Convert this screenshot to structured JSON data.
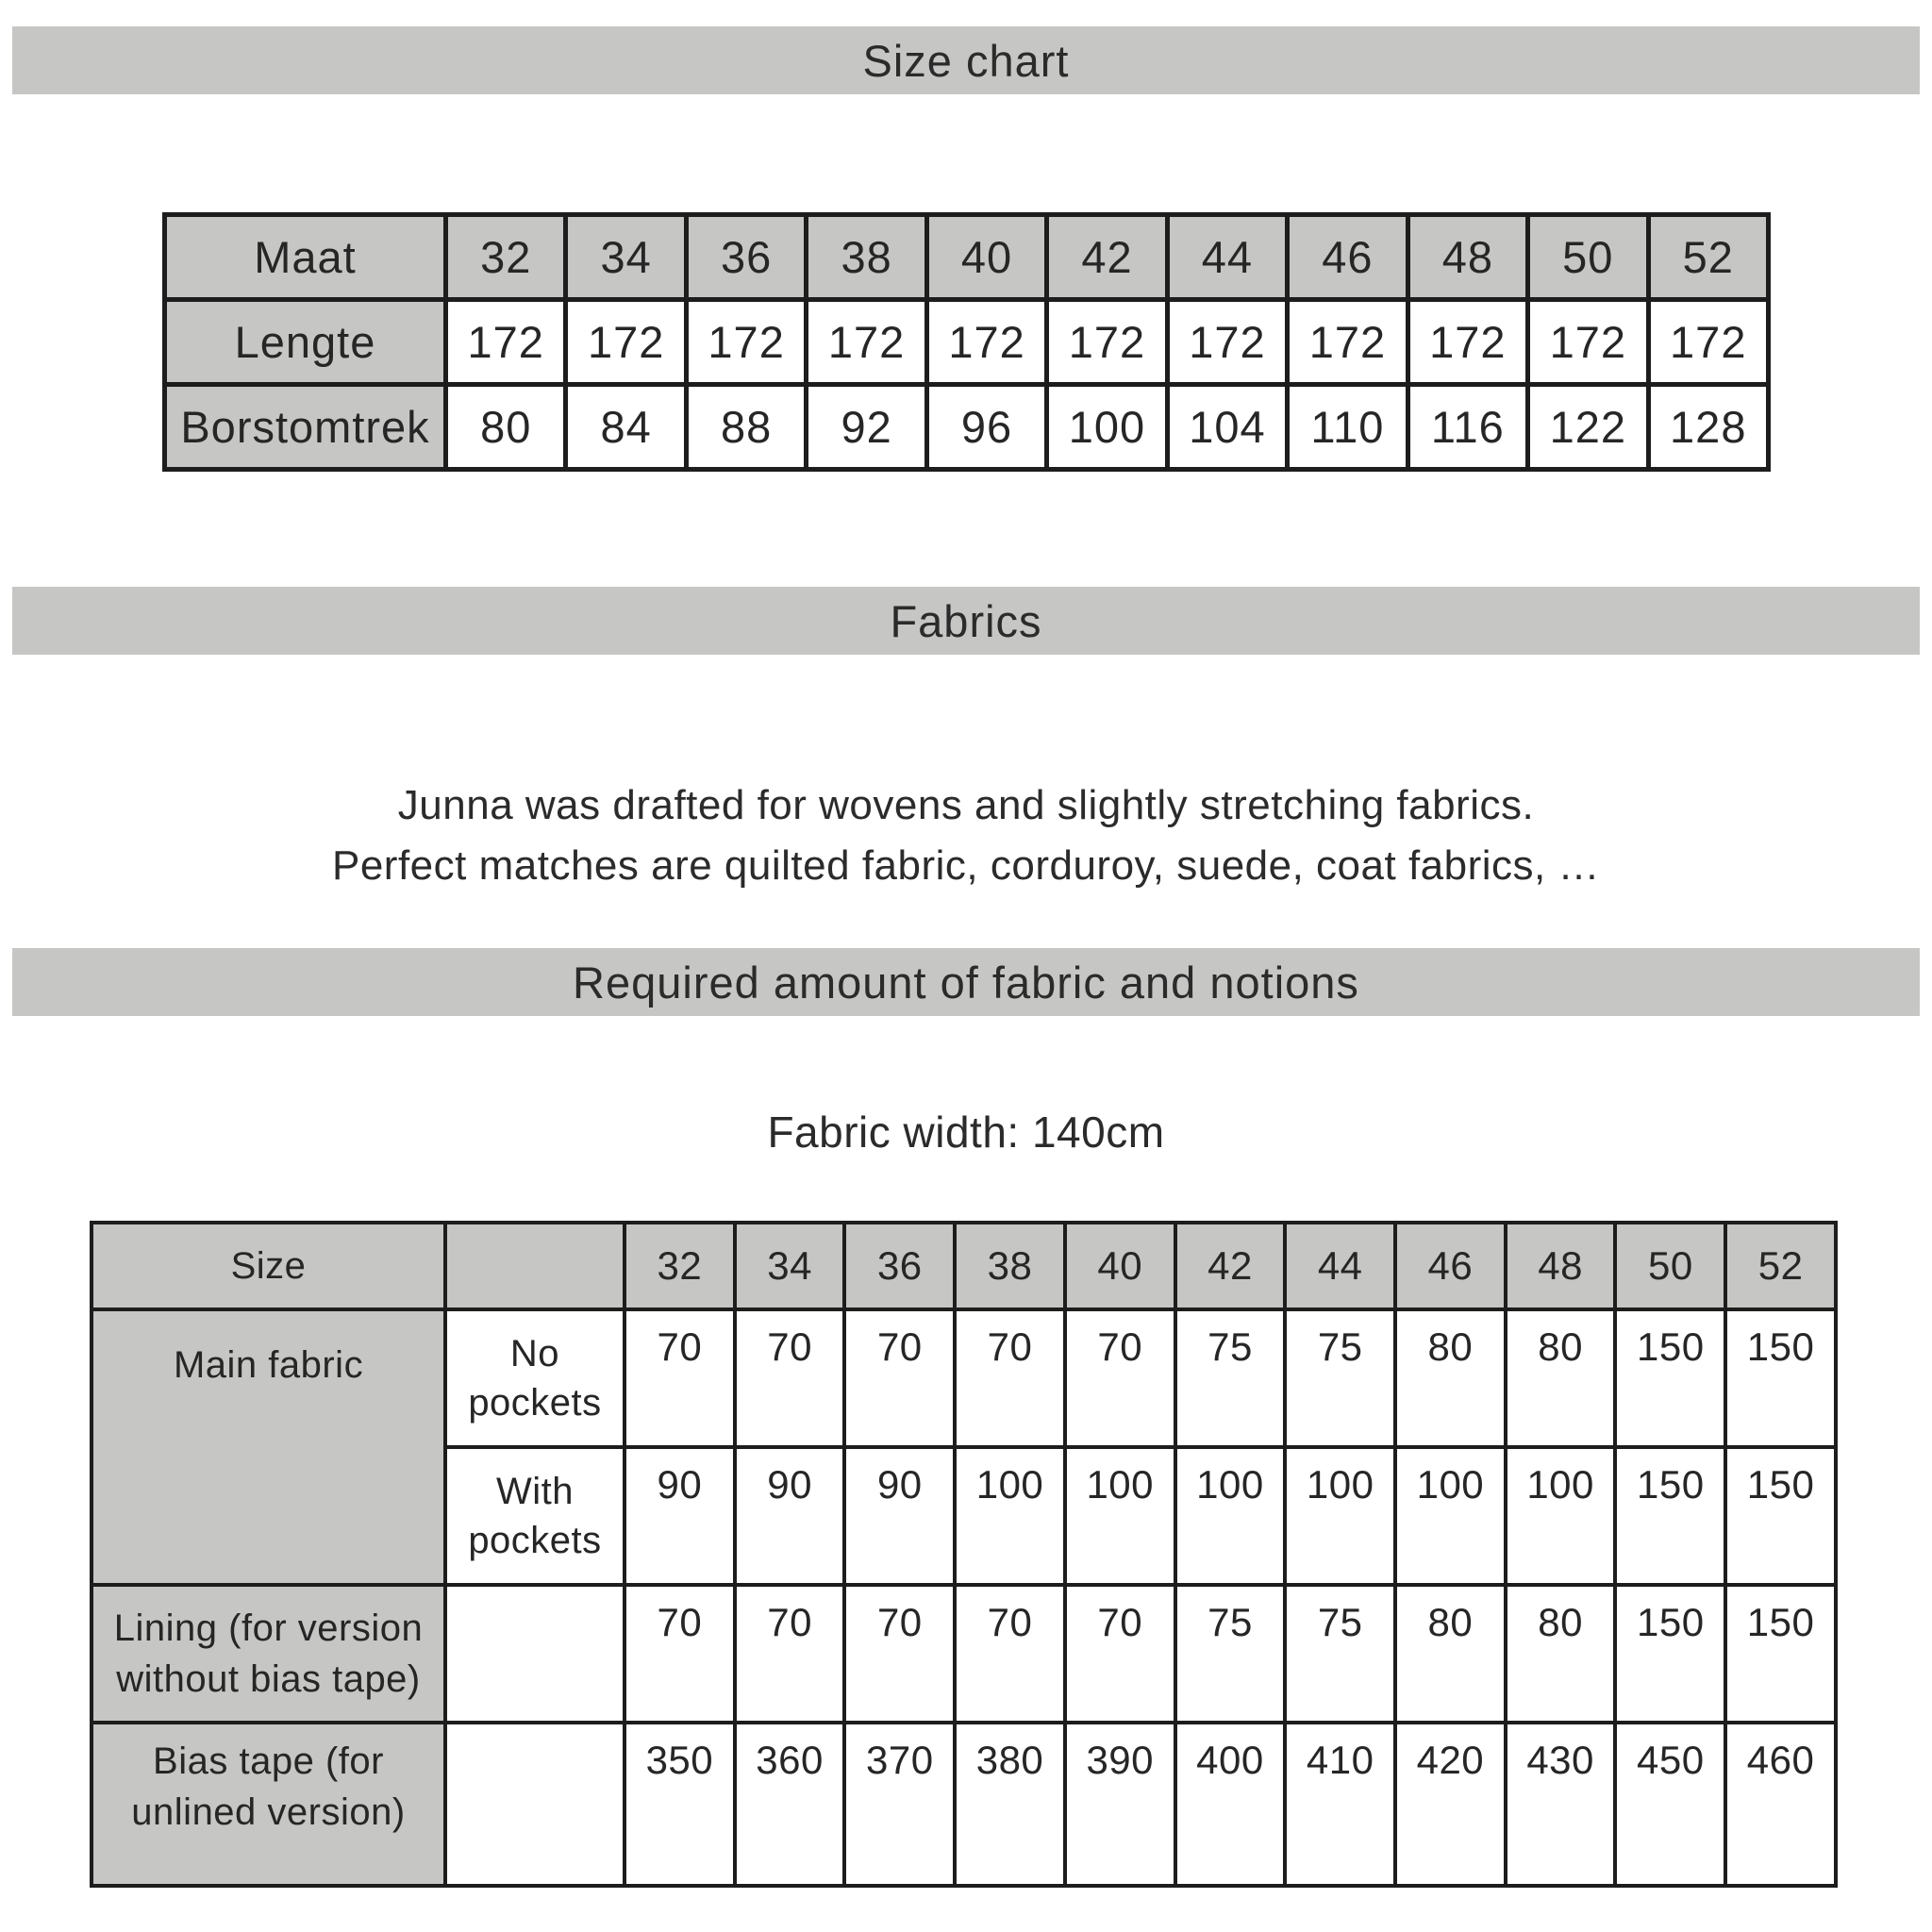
{
  "section_headers": {
    "size_chart": "Size chart",
    "fabrics": "Fabrics",
    "required_notions": "Required amount of fabric and notions"
  },
  "intro": {
    "line1": "Junna was drafted for wovens and slightly stretching fabrics.",
    "line2": "Perfect matches are quilted fabric, corduroy, suede, coat fabrics, …"
  },
  "fabric_width_note": "Fabric width: 140cm",
  "size_chart_table": {
    "header_label": "Maat",
    "sizes": [
      "32",
      "34",
      "36",
      "38",
      "40",
      "42",
      "44",
      "46",
      "48",
      "50",
      "52"
    ],
    "rows": [
      {
        "label": "Lengte",
        "values": [
          "172",
          "172",
          "172",
          "172",
          "172",
          "172",
          "172",
          "172",
          "172",
          "172",
          "172"
        ]
      },
      {
        "label": "Borstomtrek",
        "values": [
          "80",
          "84",
          "88",
          "92",
          "96",
          "100",
          "104",
          "110",
          "116",
          "122",
          "128"
        ]
      }
    ]
  },
  "notions_table": {
    "header_label": "Size",
    "header_sub": "",
    "sizes": [
      "32",
      "34",
      "36",
      "38",
      "40",
      "42",
      "44",
      "46",
      "48",
      "50",
      "52"
    ],
    "main_fabric_label": "Main fabric",
    "no_pockets": {
      "sub_label": "No pockets",
      "values": [
        "70",
        "70",
        "70",
        "70",
        "70",
        "75",
        "75",
        "80",
        "80",
        "150",
        "150"
      ]
    },
    "with_pockets": {
      "sub_label": "With pockets",
      "values": [
        "90",
        "90",
        "90",
        "100",
        "100",
        "100",
        "100",
        "100",
        "100",
        "150",
        "150"
      ]
    },
    "lining": {
      "label": "Lining (for version without bias tape)",
      "values": [
        "70",
        "70",
        "70",
        "70",
        "70",
        "75",
        "75",
        "80",
        "80",
        "150",
        "150"
      ]
    },
    "bias_tape": {
      "label": "Bias tape (for unlined version)",
      "values": [
        "350",
        "360",
        "370",
        "380",
        "390",
        "400",
        "410",
        "420",
        "430",
        "450",
        "460"
      ]
    }
  },
  "colors": {
    "bar_bg": "#c6c6c4",
    "header_cell_bg": "#c6c6c4",
    "border": "#1d1d1d",
    "text": "#262626"
  }
}
